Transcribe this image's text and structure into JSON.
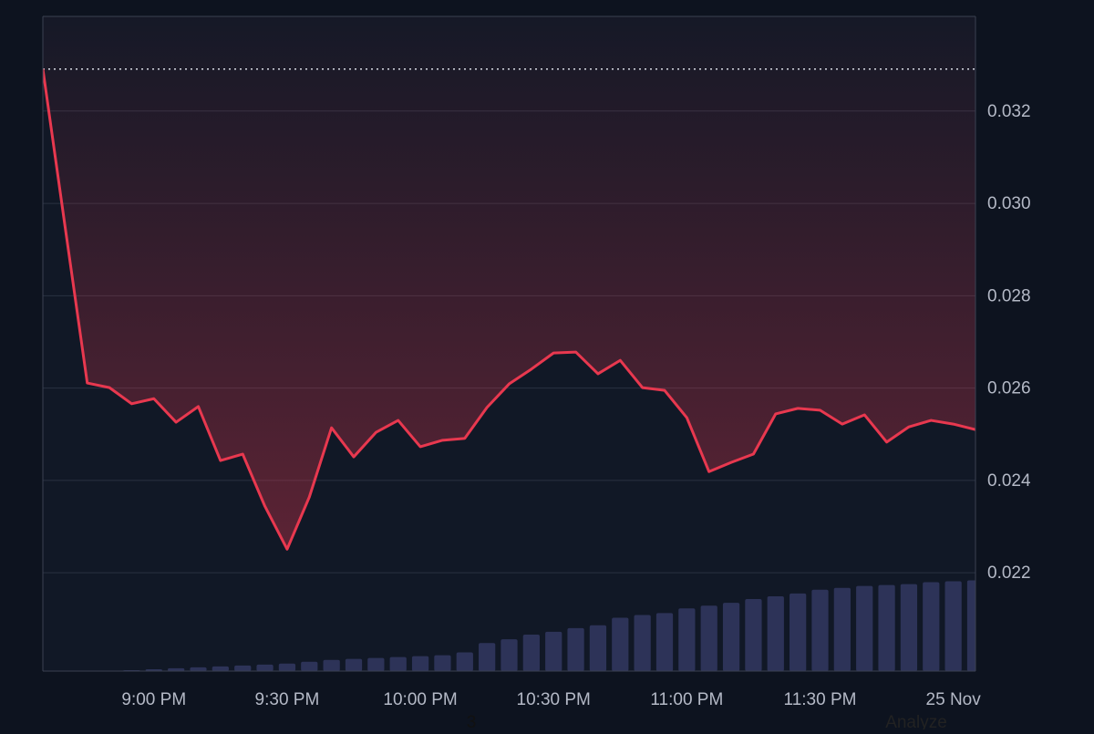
{
  "chart_data": {
    "type": "line",
    "categories": [
      null,
      null,
      null,
      null,
      null,
      "9:00 PM",
      null,
      null,
      null,
      null,
      null,
      "9:30 PM",
      null,
      null,
      null,
      null,
      null,
      "10:00 PM",
      null,
      null,
      null,
      null,
      null,
      "10:30 PM",
      null,
      null,
      null,
      null,
      null,
      "11:00 PM",
      null,
      null,
      null,
      null,
      null,
      "11:30 PM",
      null,
      null,
      null,
      null,
      null,
      "25 Nov",
      null
    ],
    "series": [
      {
        "color": "#e8384f",
        "values": [
          0.03291,
          0.0295,
          0.02611,
          0.02601,
          0.02566,
          0.02577,
          0.02526,
          0.0256,
          0.02443,
          0.02457,
          0.02344,
          0.02251,
          0.02364,
          0.02514,
          0.02451,
          0.02504,
          0.0253,
          0.02473,
          0.02487,
          0.02491,
          0.02558,
          0.02609,
          0.02641,
          0.02676,
          0.02678,
          0.02631,
          0.0266,
          0.02601,
          0.02595,
          0.02536,
          0.02419,
          0.02439,
          0.02457,
          0.02544,
          0.02556,
          0.02552,
          0.02522,
          0.02542,
          0.02483,
          0.02516,
          0.0253,
          0.02522,
          0.0251
        ]
      },
      {
        "type": "bar",
        "axis": "y2",
        "color": "#2d3358",
        "values": [
          0,
          0,
          0,
          0,
          1,
          2,
          3,
          4,
          5,
          6,
          7,
          8,
          10,
          12,
          13,
          14,
          15,
          16,
          17,
          20,
          30,
          34,
          39,
          42,
          46,
          49,
          57,
          60,
          62,
          67,
          70,
          73,
          77,
          80,
          83,
          87,
          89,
          91,
          92,
          93,
          95,
          96,
          97
        ]
      }
    ],
    "ylim": [
      0.01987,
      0.03405
    ],
    "yticks": [
      0.022,
      0.024,
      0.026,
      0.028,
      {
        "value": 0.03,
        "label": "0.030"
      },
      0.032
    ],
    "y2lim": [
      0,
      700
    ],
    "grid": true
  },
  "footer": {
    "left": "3",
    "right": "Analyze"
  }
}
